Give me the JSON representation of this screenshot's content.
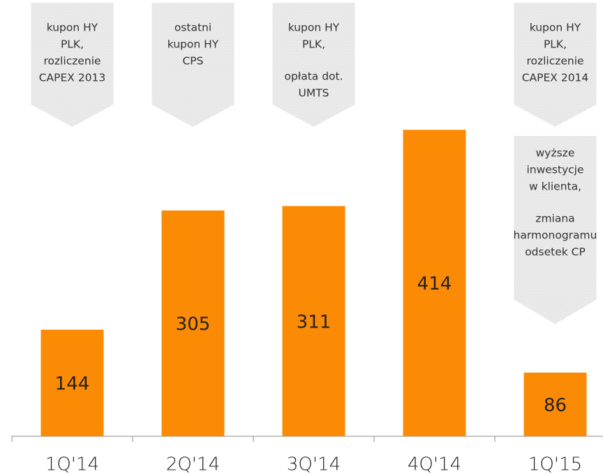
{
  "chart_data": {
    "type": "bar",
    "categories": [
      "1Q'14",
      "2Q'14",
      "3Q'14",
      "4Q'14",
      "1Q'15"
    ],
    "values": [
      144,
      305,
      311,
      414,
      86
    ],
    "color": "#fb8b05",
    "ylim": [
      0,
      450
    ],
    "annotations": [
      [
        [
          [
            "kupon HY",
            "PLK,",
            "rozliczenie",
            "CAPEX 2013"
          ]
        ]
      ],
      [
        [
          [
            "ostatni",
            "kupon HY",
            "CPS"
          ]
        ]
      ],
      [
        [
          [
            "kupon HY",
            "PLK,"
          ],
          [
            "opłata dot.",
            "UMTS"
          ]
        ]
      ],
      [],
      [
        [
          [
            "kupon HY",
            "PLK,",
            "rozliczenie",
            "CAPEX 2014"
          ]
        ],
        [
          [
            "wyższe",
            "inwestycje",
            "w klienta,"
          ],
          [
            "zmiana",
            "harmonogramu",
            "odsetek CP"
          ]
        ]
      ]
    ]
  }
}
